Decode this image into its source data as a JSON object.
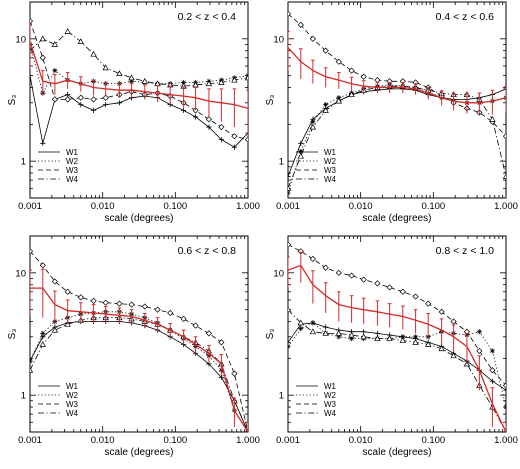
{
  "chart_data": [
    {
      "type": "line",
      "title": "0.2 < z < 0.4",
      "xlabel": "scale (degrees)",
      "ylabel": "S₃",
      "xscale": "log",
      "yscale": "log",
      "xlim": [
        0.001,
        1.0
      ],
      "ylim": [
        0.5,
        20
      ],
      "xticks": [
        "0.001",
        "0.010",
        "0.100",
        "1.000"
      ],
      "yticks": [
        "1",
        "10"
      ],
      "legend": "bottom-left",
      "x": [
        0.001,
        0.0015,
        0.0022,
        0.0033,
        0.005,
        0.0075,
        0.011,
        0.017,
        0.025,
        0.038,
        0.057,
        0.085,
        0.13,
        0.19,
        0.29,
        0.43,
        0.65,
        1.0
      ],
      "series": [
        {
          "name": "W1",
          "style": "solid",
          "marker": "plus",
          "values": [
            5.0,
            1.4,
            3.2,
            3.5,
            2.9,
            2.6,
            2.9,
            3.0,
            3.3,
            3.4,
            3.3,
            2.9,
            2.6,
            2.3,
            1.9,
            1.5,
            1.3,
            1.7
          ]
        },
        {
          "name": "W2",
          "style": "dotted",
          "marker": "star",
          "values": [
            9.0,
            3.6,
            5.5,
            4.6,
            4.3,
            4.5,
            4.3,
            4.3,
            4.5,
            4.4,
            4.3,
            4.3,
            4.4,
            4.4,
            4.5,
            4.6,
            4.8,
            5.0
          ]
        },
        {
          "name": "W3",
          "style": "dashed",
          "marker": "diamond",
          "values": [
            14.0,
            7.0,
            3.2,
            3.2,
            3.3,
            3.2,
            3.3,
            3.5,
            3.7,
            3.5,
            3.6,
            3.4,
            3.0,
            2.6,
            2.2,
            1.9,
            1.6,
            1.5
          ]
        },
        {
          "name": "W4",
          "style": "dashdot",
          "marker": "triangle",
          "values": [
            8.0,
            10.0,
            9.0,
            11.5,
            9.5,
            7.5,
            5.8,
            5.2,
            4.8,
            4.5,
            4.3,
            4.2,
            4.1,
            4.2,
            4.3,
            4.4,
            4.6,
            4.8
          ]
        }
      ],
      "mean": {
        "values": [
          9.5,
          4.5,
          4.3,
          4.6,
          4.3,
          4.0,
          3.9,
          3.8,
          3.8,
          3.7,
          3.6,
          3.5,
          3.4,
          3.3,
          3.1,
          3.0,
          2.9,
          2.7
        ],
        "errors": [
          3.8,
          1.0,
          0.8,
          0.7,
          0.6,
          0.55,
          0.5,
          0.5,
          0.5,
          0.5,
          0.55,
          0.6,
          0.65,
          0.7,
          0.8,
          0.9,
          1.0,
          1.1
        ],
        "color": "#d42a2a"
      }
    },
    {
      "type": "line",
      "title": "0.4 < z < 0.6",
      "xlabel": "scale (degrees)",
      "ylabel": "S₃",
      "xscale": "log",
      "yscale": "log",
      "xlim": [
        0.001,
        1.0
      ],
      "ylim": [
        0.5,
        20
      ],
      "xticks": [
        "0.001",
        "0.010",
        "0.100",
        "1.000"
      ],
      "yticks": [
        "1",
        "10"
      ],
      "legend": "bottom-left",
      "x": [
        0.001,
        0.0015,
        0.0022,
        0.0033,
        0.005,
        0.0075,
        0.011,
        0.017,
        0.025,
        0.038,
        0.057,
        0.085,
        0.13,
        0.19,
        0.29,
        0.43,
        0.65,
        1.0
      ],
      "series": [
        {
          "name": "W1",
          "style": "solid",
          "marker": "plus",
          "values": [
            0.75,
            1.4,
            2.2,
            2.7,
            3.1,
            3.5,
            3.7,
            3.8,
            3.9,
            3.9,
            3.8,
            3.5,
            3.3,
            3.2,
            3.2,
            3.3,
            3.5,
            3.9
          ]
        },
        {
          "name": "W2",
          "style": "dotted",
          "marker": "star",
          "values": [
            0.55,
            1.2,
            2.1,
            2.9,
            3.3,
            3.6,
            3.9,
            4.1,
            4.2,
            4.1,
            4.0,
            3.7,
            3.3,
            3.1,
            3.0,
            3.0,
            3.1,
            3.3
          ]
        },
        {
          "name": "W3",
          "style": "dashed",
          "marker": "diamond",
          "values": [
            16.0,
            13.0,
            10.0,
            8.0,
            6.5,
            5.5,
            4.9,
            4.6,
            4.5,
            4.5,
            4.4,
            4.0,
            3.4,
            3.0,
            2.7,
            2.5,
            2.1,
            1.6
          ]
        },
        {
          "name": "W4",
          "style": "dashdot",
          "marker": "triangle",
          "values": [
            0.6,
            1.1,
            1.9,
            2.6,
            3.1,
            3.5,
            3.8,
            4.0,
            4.1,
            4.1,
            4.0,
            3.8,
            3.6,
            3.5,
            3.5,
            3.2,
            2.2,
            0.75
          ]
        }
      ],
      "mean": {
        "values": [
          8.5,
          6.5,
          5.5,
          4.9,
          4.6,
          4.3,
          4.1,
          4.0,
          4.0,
          4.0,
          3.9,
          3.6,
          3.3,
          3.1,
          3.0,
          3.0,
          3.1,
          3.3
        ],
        "errors": [
          3.0,
          1.8,
          1.2,
          0.9,
          0.7,
          0.55,
          0.45,
          0.4,
          0.4,
          0.4,
          0.4,
          0.4,
          0.45,
          0.5,
          0.55,
          0.6,
          0.7,
          0.8
        ],
        "color": "#d42a2a"
      }
    },
    {
      "type": "line",
      "title": "0.6 < z < 0.8",
      "xlabel": "scale (degrees)",
      "ylabel": "S₃",
      "xscale": "log",
      "yscale": "log",
      "xlim": [
        0.001,
        1.0
      ],
      "ylim": [
        0.5,
        20
      ],
      "xticks": [
        "0.001",
        "0.010",
        "0.100",
        "1.000"
      ],
      "yticks": [
        "1",
        "10"
      ],
      "legend": "bottom-left",
      "x": [
        0.001,
        0.0015,
        0.0022,
        0.0033,
        0.005,
        0.0075,
        0.011,
        0.017,
        0.025,
        0.038,
        0.057,
        0.085,
        0.13,
        0.19,
        0.29,
        0.43,
        0.65,
        1.0
      ],
      "series": [
        {
          "name": "W1",
          "style": "solid",
          "marker": "plus",
          "values": [
            1.9,
            3.0,
            3.6,
            3.9,
            4.0,
            4.0,
            4.0,
            4.0,
            3.9,
            3.7,
            3.4,
            3.0,
            2.6,
            2.2,
            1.8,
            1.4,
            0.9,
            0.5
          ]
        },
        {
          "name": "W2",
          "style": "dotted",
          "marker": "star",
          "values": [
            1.9,
            3.2,
            4.0,
            4.3,
            4.6,
            4.7,
            4.8,
            4.8,
            4.6,
            4.3,
            3.9,
            3.4,
            2.9,
            2.5,
            2.1,
            1.6,
            0.75,
            0.5
          ]
        },
        {
          "name": "W3",
          "style": "dashed",
          "marker": "diamond",
          "values": [
            15.0,
            11.5,
            8.5,
            7.0,
            6.3,
            5.9,
            5.7,
            5.6,
            5.5,
            5.3,
            5.0,
            4.7,
            4.2,
            3.7,
            3.2,
            2.7,
            1.5,
            0.5
          ]
        },
        {
          "name": "W4",
          "style": "dashdot",
          "marker": "triangle",
          "values": [
            1.6,
            2.6,
            3.4,
            3.8,
            4.1,
            4.3,
            4.3,
            4.3,
            4.2,
            4.0,
            3.8,
            3.4,
            3.0,
            2.7,
            2.3,
            1.8,
            0.9,
            0.5
          ]
        }
      ],
      "mean": {
        "values": [
          7.5,
          7.5,
          5.5,
          4.9,
          4.8,
          4.7,
          4.6,
          4.5,
          4.4,
          4.1,
          3.8,
          3.4,
          3.0,
          2.6,
          2.2,
          1.8,
          0.75,
          0.5
        ],
        "errors": [
          3.0,
          3.2,
          1.6,
          1.1,
          0.9,
          0.8,
          0.7,
          0.65,
          0.6,
          0.55,
          0.5,
          0.45,
          0.4,
          0.4,
          0.35,
          0.35,
          0.2,
          0.1
        ],
        "color": "#d42a2a"
      }
    },
    {
      "type": "line",
      "title": "0.8 < z < 1.0",
      "xlabel": "scale (degrees)",
      "ylabel": "S₃",
      "xscale": "log",
      "yscale": "log",
      "xlim": [
        0.001,
        1.0
      ],
      "ylim": [
        0.5,
        20
      ],
      "xticks": [
        "0.001",
        "0.010",
        "0.100",
        "1.000"
      ],
      "yticks": [
        "1",
        "10"
      ],
      "legend": "bottom-left",
      "x": [
        0.001,
        0.0015,
        0.0022,
        0.0033,
        0.005,
        0.0075,
        0.011,
        0.017,
        0.025,
        0.038,
        0.057,
        0.085,
        0.13,
        0.19,
        0.29,
        0.43,
        0.65,
        1.0
      ],
      "series": [
        {
          "name": "W1",
          "style": "solid",
          "marker": "plus",
          "values": [
            2.7,
            3.8,
            3.9,
            3.6,
            3.4,
            3.3,
            3.3,
            3.2,
            3.1,
            3.0,
            2.9,
            2.7,
            2.5,
            2.2,
            1.9,
            1.6,
            1.3,
            1.1
          ]
        },
        {
          "name": "W2",
          "style": "dotted",
          "marker": "star",
          "values": [
            2.5,
            3.5,
            3.9,
            3.2,
            3.0,
            2.9,
            2.9,
            2.9,
            2.9,
            3.0,
            3.0,
            3.0,
            3.3,
            3.2,
            3.1,
            3.3,
            2.3,
            0.8
          ]
        },
        {
          "name": "W3",
          "style": "dashed",
          "marker": "diamond",
          "values": [
            17.0,
            15.0,
            13.0,
            11.0,
            10.0,
            9.5,
            8.8,
            8.2,
            7.6,
            7.0,
            6.4,
            5.6,
            4.8,
            4.0,
            3.3,
            2.3,
            1.6,
            1.2
          ]
        },
        {
          "name": "W4",
          "style": "dashdot",
          "marker": "triangle",
          "values": [
            5.0,
            3.9,
            3.3,
            3.2,
            3.2,
            3.1,
            3.0,
            2.9,
            2.9,
            2.8,
            2.7,
            2.6,
            2.4,
            2.1,
            1.8,
            1.2,
            0.8,
            0.5
          ]
        }
      ],
      "mean": {
        "values": [
          10.5,
          11.5,
          8.0,
          6.5,
          5.5,
          5.2,
          5.0,
          4.8,
          4.6,
          4.4,
          4.1,
          3.8,
          3.4,
          3.0,
          2.5,
          1.6,
          0.85,
          0.5
        ],
        "errors": [
          3.0,
          3.2,
          2.4,
          1.8,
          1.5,
          1.3,
          1.2,
          1.1,
          1.0,
          0.95,
          0.9,
          0.85,
          0.8,
          0.75,
          0.7,
          0.5,
          0.3,
          0.1
        ],
        "color": "#d42a2a"
      }
    }
  ]
}
